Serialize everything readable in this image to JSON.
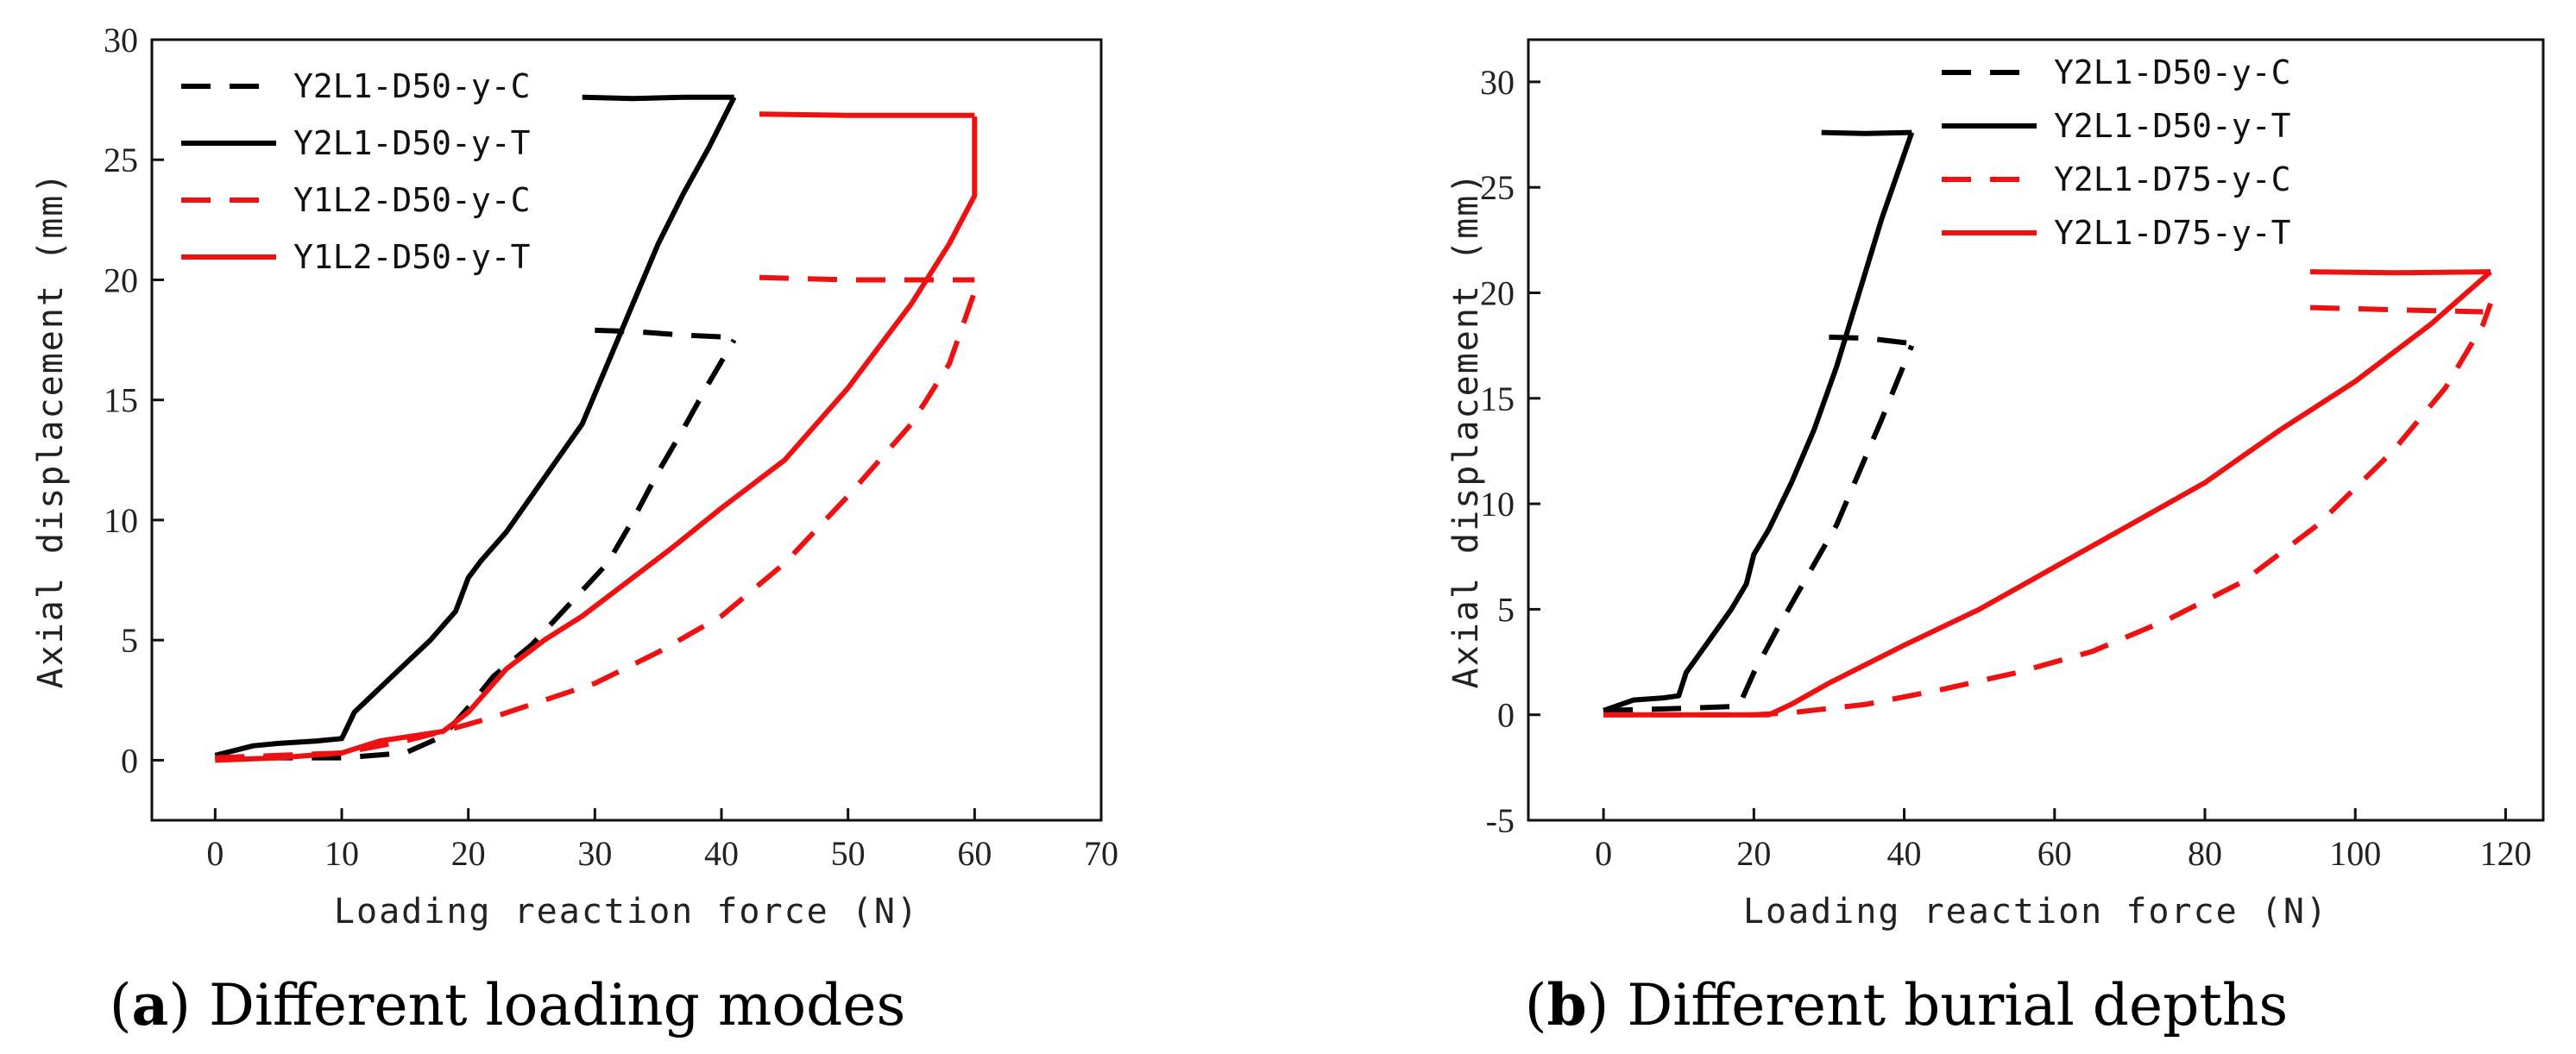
{
  "chart_data": [
    {
      "type": "line",
      "panel_label": "a",
      "caption": "Different loading modes",
      "xlabel": "Loading reaction force (N)",
      "ylabel": "Axial displacement (mm)",
      "xlim": [
        -5,
        70
      ],
      "ylim": [
        -2.5,
        30
      ],
      "xticks": [
        0,
        10,
        20,
        30,
        40,
        50,
        60,
        70
      ],
      "yticks": [
        0,
        5,
        10,
        15,
        20,
        25,
        30
      ],
      "grid": false,
      "legend_position": "top-left",
      "series": [
        {
          "name": "Y2L1-D50-y-C",
          "color": "#000000",
          "dash": "dashed",
          "segments": [
            [
              [
                0,
                0.1
              ],
              [
                10,
                0.1
              ],
              [
                15,
                0.3
              ],
              [
                18,
                1
              ],
              [
                20,
                2.2
              ],
              [
                22,
                3.5
              ],
              [
                25,
                4.8
              ],
              [
                28,
                6.5
              ],
              [
                31,
                8.2
              ],
              [
                33,
                10
              ],
              [
                35,
                12
              ],
              [
                37,
                13.8
              ],
              [
                39,
                15.7
              ],
              [
                41,
                17.5
              ]
            ],
            [
              [
                30,
                17.9
              ],
              [
                33,
                17.85
              ],
              [
                37,
                17.7
              ],
              [
                41,
                17.6
              ]
            ]
          ]
        },
        {
          "name": "Y2L1-D50-y-T",
          "color": "#000000",
          "dash": "solid",
          "segments": [
            [
              [
                0,
                0.2
              ],
              [
                3,
                0.6
              ],
              [
                5,
                0.7
              ],
              [
                8,
                0.8
              ],
              [
                10,
                0.9
              ],
              [
                11,
                2
              ],
              [
                13,
                3
              ],
              [
                15,
                4
              ],
              [
                17,
                5
              ],
              [
                19,
                6.2
              ],
              [
                20,
                7.6
              ],
              [
                21,
                8.3
              ],
              [
                23,
                9.5
              ],
              [
                25,
                11
              ],
              [
                27,
                12.5
              ],
              [
                29,
                14
              ],
              [
                31,
                16.5
              ],
              [
                33,
                19
              ],
              [
                35,
                21.5
              ],
              [
                37,
                23.6
              ],
              [
                39,
                25.5
              ],
              [
                41,
                27.6
              ]
            ],
            [
              [
                29,
                27.6
              ],
              [
                33,
                27.55
              ],
              [
                37,
                27.6
              ],
              [
                41,
                27.6
              ]
            ]
          ]
        },
        {
          "name": "Y1L2-D50-y-C",
          "color": "#ee1111",
          "dash": "dashed",
          "segments": [
            [
              [
                0,
                0.1
              ],
              [
                10,
                0.3
              ],
              [
                15,
                0.8
              ],
              [
                18,
                1.2
              ],
              [
                22,
                1.8
              ],
              [
                26,
                2.5
              ],
              [
                30,
                3.2
              ],
              [
                35,
                4.5
              ],
              [
                40,
                6
              ],
              [
                45,
                8.2
              ],
              [
                50,
                11
              ],
              [
                55,
                14
              ],
              [
                58,
                16.5
              ],
              [
                60,
                19.5
              ]
            ],
            [
              [
                43,
                20.1
              ],
              [
                50,
                20
              ],
              [
                55,
                20
              ],
              [
                60,
                20
              ]
            ]
          ]
        },
        {
          "name": "Y1L2-D50-y-T",
          "color": "#ee1111",
          "dash": "solid",
          "segments": [
            [
              [
                0,
                0
              ],
              [
                5,
                0.1
              ],
              [
                10,
                0.3
              ],
              [
                13,
                0.8
              ],
              [
                18,
                1.2
              ],
              [
                20,
                2
              ],
              [
                23,
                3.8
              ],
              [
                26,
                5
              ],
              [
                29,
                6
              ],
              [
                32,
                7.2
              ],
              [
                36,
                8.8
              ],
              [
                40,
                10.5
              ],
              [
                45,
                12.5
              ],
              [
                50,
                15.5
              ],
              [
                55,
                19
              ],
              [
                58,
                21.5
              ],
              [
                60,
                23.5
              ],
              [
                60,
                26.8
              ]
            ],
            [
              [
                43,
                26.9
              ],
              [
                50,
                26.85
              ],
              [
                55,
                26.85
              ],
              [
                60,
                26.85
              ]
            ]
          ]
        }
      ]
    },
    {
      "type": "line",
      "panel_label": "b",
      "caption": "Different burial depths",
      "xlabel": "Loading reaction force (N)",
      "ylabel": "Axial displacement (mm)",
      "xlim": [
        -10,
        125
      ],
      "ylim": [
        -5,
        32
      ],
      "xticks": [
        0,
        20,
        40,
        60,
        80,
        100,
        120
      ],
      "yticks": [
        -5,
        0,
        5,
        10,
        15,
        20,
        25,
        30
      ],
      "grid": false,
      "legend_position": "top-center",
      "series": [
        {
          "name": "Y2L1-D50-y-C",
          "color": "#000000",
          "dash": "dashed",
          "segments": [
            [
              [
                0,
                0.2
              ],
              [
                10,
                0.3
              ],
              [
                18,
                0.4
              ],
              [
                20,
                2
              ],
              [
                23,
                4
              ],
              [
                27,
                6.5
              ],
              [
                31,
                9
              ],
              [
                34,
                11.5
              ],
              [
                37,
                14
              ],
              [
                41,
                17.5
              ]
            ],
            [
              [
                30,
                17.9
              ],
              [
                35,
                17.85
              ],
              [
                41,
                17.6
              ]
            ]
          ]
        },
        {
          "name": "Y2L1-D50-y-T",
          "color": "#000000",
          "dash": "solid",
          "segments": [
            [
              [
                0,
                0.2
              ],
              [
                4,
                0.7
              ],
              [
                8,
                0.8
              ],
              [
                10,
                0.9
              ],
              [
                11,
                2
              ],
              [
                14,
                3.5
              ],
              [
                17,
                5
              ],
              [
                19,
                6.2
              ],
              [
                20,
                7.6
              ],
              [
                22,
                8.8
              ],
              [
                25,
                11
              ],
              [
                28,
                13.5
              ],
              [
                31,
                16.5
              ],
              [
                34,
                20
              ],
              [
                37,
                23.5
              ],
              [
                41,
                27.6
              ]
            ],
            [
              [
                29,
                27.6
              ],
              [
                35,
                27.55
              ],
              [
                41,
                27.6
              ]
            ]
          ]
        },
        {
          "name": "Y2L1-D75-y-C",
          "color": "#ee1111",
          "dash": "dashed",
          "segments": [
            [
              [
                0,
                0
              ],
              [
                20,
                0
              ],
              [
                25,
                0.1
              ],
              [
                35,
                0.5
              ],
              [
                45,
                1.2
              ],
              [
                55,
                2
              ],
              [
                65,
                3
              ],
              [
                75,
                4.5
              ],
              [
                85,
                6.3
              ],
              [
                95,
                9
              ],
              [
                105,
                12.5
              ],
              [
                112,
                15.5
              ],
              [
                117,
                18.5
              ],
              [
                118,
                19.5
              ]
            ],
            [
              [
                94,
                19.3
              ],
              [
                105,
                19.2
              ],
              [
                117,
                19.1
              ]
            ]
          ]
        },
        {
          "name": "Y2L1-D75-y-T",
          "color": "#ee1111",
          "dash": "solid",
          "segments": [
            [
              [
                0,
                0
              ],
              [
                15,
                0
              ],
              [
                22,
                0
              ],
              [
                25,
                0.5
              ],
              [
                30,
                1.5
              ],
              [
                40,
                3.3
              ],
              [
                50,
                5
              ],
              [
                60,
                7
              ],
              [
                70,
                9
              ],
              [
                80,
                11
              ],
              [
                90,
                13.5
              ],
              [
                100,
                15.8
              ],
              [
                110,
                18.5
              ],
              [
                118,
                21
              ]
            ],
            [
              [
                94,
                21
              ],
              [
                105,
                20.95
              ],
              [
                118,
                21
              ]
            ]
          ]
        }
      ]
    }
  ]
}
